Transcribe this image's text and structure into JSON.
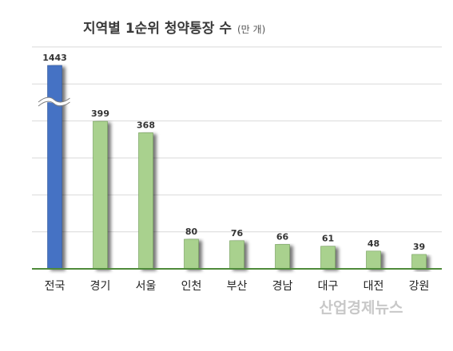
{
  "chart_data": {
    "type": "bar",
    "title": "지역별 1순위 청약통장 수",
    "unit": "(만 개)",
    "categories": [
      "전국",
      "경기",
      "서울",
      "인천",
      "부산",
      "경남",
      "대구",
      "대전",
      "강원"
    ],
    "values": [
      1443,
      399,
      368,
      80,
      76,
      66,
      61,
      48,
      39
    ],
    "value_labels": [
      "1443",
      "399",
      "368",
      "80",
      "76",
      "66",
      "61",
      "48",
      "39"
    ],
    "axis_break": true,
    "grid": true,
    "legend": "none"
  },
  "colors": {
    "highlight_bar": "#4472c4",
    "bar": "#a9d18e",
    "bar_edge": "#6f9a56",
    "axis": "#4e8a3a",
    "grid": "#d9d9d9"
  },
  "watermark": "산업경제뉴스"
}
